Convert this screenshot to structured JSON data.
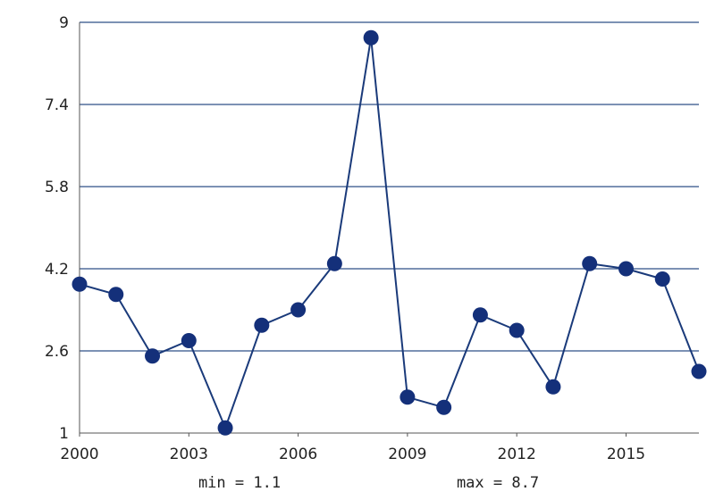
{
  "chart_data": {
    "type": "line",
    "title": "",
    "xlabel": "",
    "ylabel": "",
    "x": [
      2000,
      2001,
      2002,
      2003,
      2004,
      2005,
      2006,
      2007,
      2008,
      2009,
      2010,
      2011,
      2012,
      2013,
      2014,
      2015,
      2016,
      2017
    ],
    "series": [
      {
        "values": [
          3.9,
          3.7,
          2.5,
          2.8,
          1.1,
          3.1,
          3.4,
          4.3,
          8.7,
          1.7,
          1.5,
          3.3,
          3.0,
          1.9,
          4.3,
          4.2,
          4.0,
          2.2
        ]
      }
    ],
    "xlim": [
      2000,
      2017
    ],
    "ylim": [
      1,
      9
    ],
    "x_ticks": [
      "2000",
      "2003",
      "2006",
      "2009",
      "2012",
      "2015"
    ],
    "y_ticks": [
      "1",
      "2.6",
      "4.2",
      "5.8",
      "7.4",
      "9"
    ],
    "grid": "horizontal",
    "legend": "none",
    "line_color": "#1a3a7a",
    "marker_color": "#14307a",
    "grid_color": "#2e4f86",
    "annotations": {
      "min_text": "min = 1.1",
      "max_text": "max = 8.7"
    }
  }
}
